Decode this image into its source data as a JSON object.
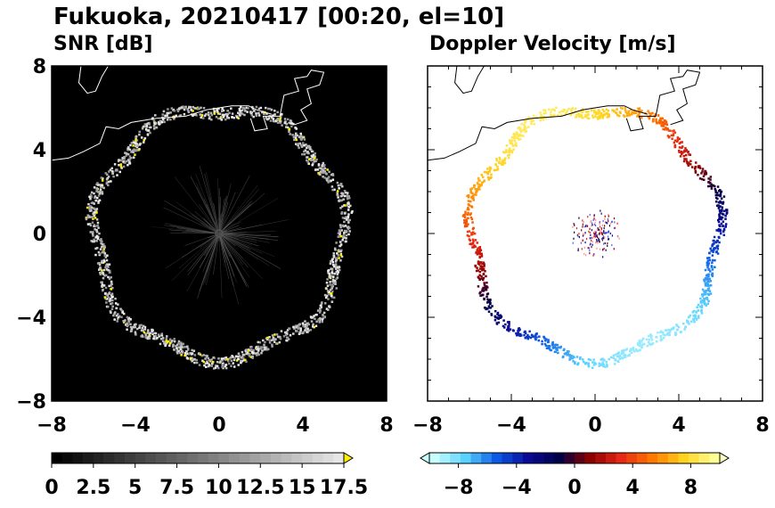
{
  "header": {
    "title": "Fukuoka, 20210417 [00:20, el=10]"
  },
  "chart_data": [
    {
      "type": "heatmap",
      "title": "SNR [dB]",
      "xlim": [
        -8,
        8
      ],
      "ylim": [
        -8,
        8
      ],
      "x_ticks": [
        -8,
        -4,
        0,
        4,
        8
      ],
      "y_ticks": [
        -8,
        -4,
        0,
        4,
        8
      ],
      "x_tick_labels": [
        "−8",
        "−4",
        "0",
        "4",
        "8"
      ],
      "y_tick_labels": [
        "−8",
        "−4",
        "0",
        "4",
        "8"
      ],
      "background": "#000000",
      "ring_radius": 5.95,
      "colorbar": {
        "min": 0,
        "max": 17.5,
        "tick_values": [
          0,
          2.5,
          5,
          7.5,
          10,
          12.5,
          15,
          17.5
        ],
        "tick_labels": [
          "0",
          "2.5",
          "5",
          "7.5",
          "10",
          "12.5",
          "15",
          "17.5"
        ],
        "colors": [
          "#000000",
          "#ffffff",
          "#ffee00"
        ]
      }
    },
    {
      "type": "heatmap",
      "title": "Doppler Velocity [m/s]",
      "xlim": [
        -8,
        8
      ],
      "ylim": [
        -8,
        8
      ],
      "x_ticks": [
        -8,
        -4,
        0,
        4,
        8
      ],
      "y_ticks": [
        -8,
        -4,
        0,
        4,
        8
      ],
      "x_tick_labels": [
        "−8",
        "−4",
        "0",
        "4",
        "8"
      ],
      "y_tick_labels": [
        "−8",
        "−4",
        "0",
        "4",
        "8"
      ],
      "background": "#ffffff",
      "ring_radius": 5.95,
      "colorbar": {
        "min": -10,
        "max": 10,
        "tick_values": [
          -8,
          -4,
          0,
          4,
          8
        ],
        "tick_labels": [
          "−8",
          "−4",
          "0",
          "4",
          "8"
        ],
        "colors": [
          "#c8ffff",
          "#5ad2ff",
          "#0a5ae6",
          "#0a0a96",
          "#000046",
          "#8c0000",
          "#e62814",
          "#ff7800",
          "#ffd21e",
          "#ffff96"
        ]
      }
    }
  ]
}
